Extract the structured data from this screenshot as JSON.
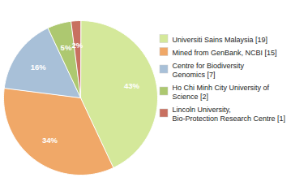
{
  "chart_data": {
    "type": "pie",
    "categories": [
      "Universiti Sains Malaysia [19]",
      "Mined from GenBank, NCBI [15]",
      "Centre for Biodiversity\nGenomics [7]",
      "Ho Chi Minh City University of\nScience [2]",
      "Lincoln University,\nBio-Protection Research Centre [1]"
    ],
    "values": [
      43,
      34,
      16,
      5,
      2
    ],
    "value_labels": [
      "43%",
      "34%",
      "16%",
      "5%",
      "2%"
    ],
    "colors": [
      "#d4e89a",
      "#f0a868",
      "#a8c0d8",
      "#adc870",
      "#c87060"
    ],
    "data_labels": true,
    "legend": "right"
  }
}
